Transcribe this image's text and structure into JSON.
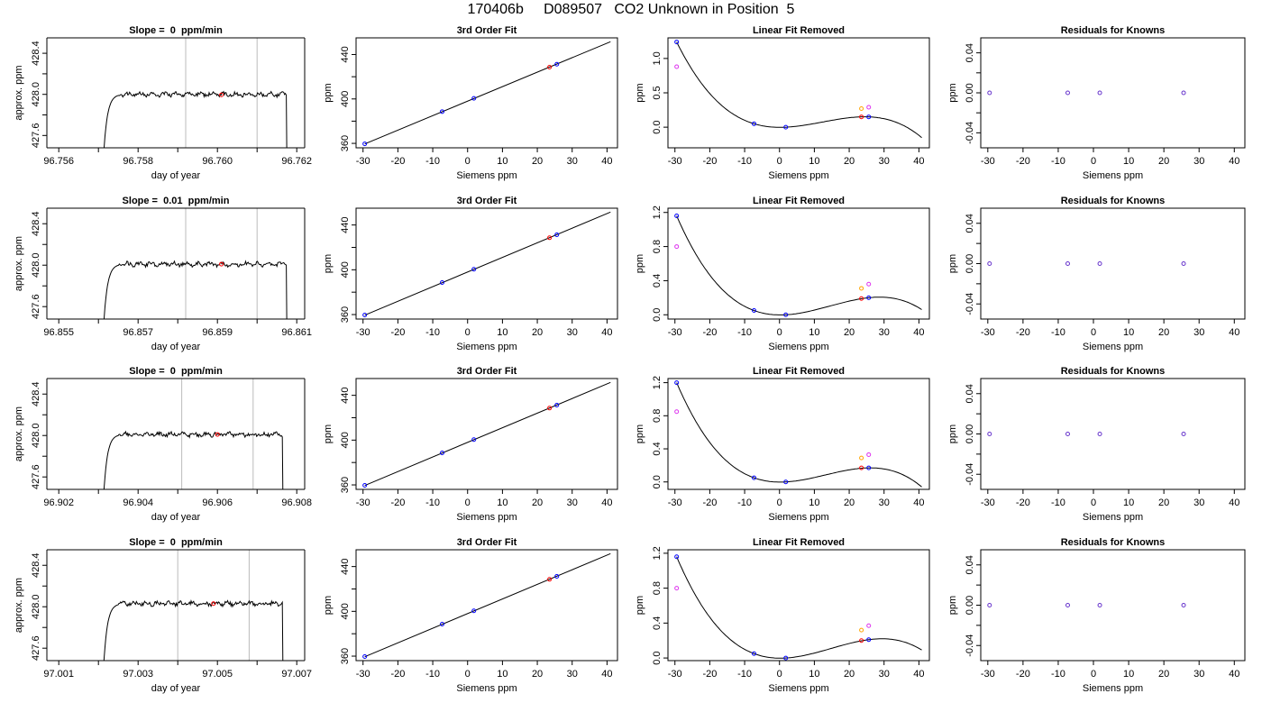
{
  "title": "170406b     D089507   CO2 Unknown in Position  5",
  "colors": {
    "axis": "#000000",
    "trace": "#000000",
    "vline": "#bbbbbb",
    "unknown_point": "#ff0000",
    "known_point": "#0000ff",
    "orange_point": "#ffa500",
    "magenta_point": "#dd33ee",
    "purple_point": "#6633cc"
  },
  "chart_data": [
    {
      "type": "line",
      "panel": "timeseries",
      "row": 0,
      "title": "Slope =  0  ppm/min",
      "xlabel": "day of year",
      "ylabel": "approx. ppm",
      "xlim": [
        96.7557,
        96.7622
      ],
      "ylim": [
        427.48,
        428.55
      ],
      "xticks": [
        96.756,
        96.758,
        96.76,
        96.762
      ],
      "xtick_labels": [
        "96.756",
        "96.758",
        "96.760",
        "96.762"
      ],
      "xticks_minor": [
        96.757,
        96.759,
        96.761
      ],
      "yticks": [
        427.6,
        428.0,
        428.4
      ],
      "ytick_labels": [
        "427.6",
        "428.0",
        "428.4"
      ],
      "yticks_minor": [
        427.8,
        428.2
      ],
      "vlines": [
        96.7592,
        96.761
      ],
      "trace_start": 96.7571,
      "trace_end": 96.7618,
      "plateau": 428.0,
      "marker": [
        96.7601,
        427.995
      ]
    },
    {
      "type": "scatter",
      "panel": "fit",
      "row": 0,
      "title": "3rd Order Fit",
      "xlabel": "Siemens ppm",
      "ylabel": "ppm",
      "xlim": [
        -32,
        43
      ],
      "ylim": [
        356,
        455
      ],
      "xticks": [
        -30,
        -20,
        -10,
        0,
        10,
        20,
        30,
        40
      ],
      "yticks": [
        360,
        400,
        440
      ],
      "yticks_minor": [
        380,
        420
      ],
      "line": [
        [
          -29.5,
          359.5
        ],
        [
          41,
          451.5
        ]
      ],
      "points": [
        [
          -29.5,
          359.6,
          "known"
        ],
        [
          -7.3,
          388.6,
          "known"
        ],
        [
          1.8,
          400.5,
          "known"
        ],
        [
          25.6,
          431.3,
          "known"
        ],
        [
          23.5,
          428.6,
          "unknown"
        ]
      ]
    },
    {
      "type": "scatter",
      "panel": "linear-removed",
      "row": 0,
      "title": "Linear Fit Removed",
      "xlabel": "Siemens ppm",
      "ylabel": "ppm",
      "xlim": [
        -32,
        43
      ],
      "ylim": [
        -0.3,
        1.3
      ],
      "xticks": [
        -30,
        -20,
        -10,
        0,
        10,
        20,
        30,
        40
      ],
      "yticks": [
        0.0,
        0.5,
        1.0
      ],
      "ytick_labels": [
        "0.0",
        "0.5",
        "1.0"
      ],
      "cubic_points": [
        [
          -29.5,
          1.24
        ],
        [
          -7.3,
          0.05
        ],
        [
          1.8,
          0.0
        ],
        [
          25.6,
          0.15
        ]
      ],
      "curve_range": [
        -29.5,
        40.8
      ],
      "points": [
        [
          -29.5,
          1.24,
          "known"
        ],
        [
          -7.3,
          0.05,
          "known"
        ],
        [
          1.8,
          0.0,
          "known"
        ],
        [
          25.6,
          0.15,
          "known"
        ],
        [
          23.5,
          0.15,
          "unknown"
        ],
        [
          -29.5,
          0.88,
          "magenta"
        ],
        [
          23.5,
          0.27,
          "orange"
        ],
        [
          25.6,
          0.29,
          "magenta"
        ]
      ]
    },
    {
      "type": "scatter",
      "panel": "residuals",
      "row": 0,
      "title": "Residuals for Knowns",
      "xlabel": "Siemens ppm",
      "ylabel": "ppm",
      "xlim": [
        -32,
        43
      ],
      "ylim": [
        -0.055,
        0.055
      ],
      "xticks": [
        -30,
        -20,
        -10,
        0,
        10,
        20,
        30,
        40
      ],
      "yticks": [
        -0.04,
        0.0,
        0.04
      ],
      "ytick_labels": [
        "-0.04",
        "0.00",
        "0.04"
      ],
      "yticks_minor": [
        -0.02,
        0.02
      ],
      "points": [
        [
          -29.5,
          0.0,
          "purple"
        ],
        [
          -7.3,
          0.0,
          "purple"
        ],
        [
          1.8,
          0.0,
          "purple"
        ],
        [
          25.6,
          0.0,
          "purple"
        ]
      ]
    },
    {
      "type": "line",
      "panel": "timeseries",
      "row": 1,
      "title": "Slope =  0.01  ppm/min",
      "xlabel": "day of year",
      "ylabel": "approx. ppm",
      "xlim": [
        96.8547,
        96.8612
      ],
      "ylim": [
        427.48,
        428.55
      ],
      "xticks": [
        96.855,
        96.857,
        96.859,
        96.861
      ],
      "xtick_labels": [
        "96.855",
        "96.857",
        "96.859",
        "96.861"
      ],
      "xticks_minor": [
        96.856,
        96.858,
        96.86
      ],
      "yticks": [
        427.6,
        428.0,
        428.4
      ],
      "ytick_labels": [
        "427.6",
        "428.0",
        "428.4"
      ],
      "yticks_minor": [
        427.8,
        428.2
      ],
      "vlines": [
        96.8582,
        96.86
      ],
      "trace_start": 96.8561,
      "trace_end": 96.8608,
      "plateau": 428.01,
      "marker": [
        96.8591,
        428.01
      ]
    },
    {
      "type": "scatter",
      "panel": "fit",
      "row": 1,
      "title": "3rd Order Fit",
      "xlabel": "Siemens ppm",
      "ylabel": "ppm",
      "xlim": [
        -32,
        43
      ],
      "ylim": [
        356,
        455
      ],
      "xticks": [
        -30,
        -20,
        -10,
        0,
        10,
        20,
        30,
        40
      ],
      "yticks": [
        360,
        400,
        440
      ],
      "yticks_minor": [
        380,
        420
      ],
      "line": [
        [
          -29.5,
          359.5
        ],
        [
          41,
          451.5
        ]
      ],
      "points": [
        [
          -29.5,
          359.6,
          "known"
        ],
        [
          -7.3,
          388.6,
          "known"
        ],
        [
          1.8,
          400.5,
          "known"
        ],
        [
          25.6,
          431.3,
          "known"
        ],
        [
          23.5,
          428.6,
          "unknown"
        ]
      ]
    },
    {
      "type": "scatter",
      "panel": "linear-removed",
      "row": 1,
      "title": "Linear Fit Removed",
      "xlabel": "Siemens ppm",
      "ylabel": "ppm",
      "xlim": [
        -32,
        43
      ],
      "ylim": [
        -0.05,
        1.25
      ],
      "xticks": [
        -30,
        -20,
        -10,
        0,
        10,
        20,
        30,
        40
      ],
      "yticks": [
        0.0,
        0.4,
        0.8,
        1.2
      ],
      "ytick_labels": [
        "0.0",
        "0.4",
        "0.8",
        "1.2"
      ],
      "cubic_points": [
        [
          -29.5,
          1.16
        ],
        [
          -7.3,
          0.05
        ],
        [
          1.8,
          0.0
        ],
        [
          25.6,
          0.2
        ]
      ],
      "curve_range": [
        -29.5,
        40.8
      ],
      "points": [
        [
          -29.5,
          1.16,
          "known"
        ],
        [
          -7.3,
          0.05,
          "known"
        ],
        [
          1.8,
          0.0,
          "known"
        ],
        [
          25.6,
          0.2,
          "known"
        ],
        [
          23.5,
          0.19,
          "unknown"
        ],
        [
          -29.5,
          0.8,
          "magenta"
        ],
        [
          23.5,
          0.31,
          "orange"
        ],
        [
          25.6,
          0.36,
          "magenta"
        ]
      ]
    },
    {
      "type": "scatter",
      "panel": "residuals",
      "row": 1,
      "title": "Residuals for Knowns",
      "xlabel": "Siemens ppm",
      "ylabel": "ppm",
      "xlim": [
        -32,
        43
      ],
      "ylim": [
        -0.055,
        0.055
      ],
      "xticks": [
        -30,
        -20,
        -10,
        0,
        10,
        20,
        30,
        40
      ],
      "yticks": [
        -0.04,
        0.0,
        0.04
      ],
      "ytick_labels": [
        "-0.04",
        "0.00",
        "0.04"
      ],
      "yticks_minor": [
        -0.02,
        0.02
      ],
      "points": [
        [
          -29.5,
          0.0,
          "purple"
        ],
        [
          -7.3,
          0.0,
          "purple"
        ],
        [
          1.8,
          0.0,
          "purple"
        ],
        [
          25.6,
          0.0,
          "purple"
        ]
      ]
    },
    {
      "type": "line",
      "panel": "timeseries",
      "row": 2,
      "title": "Slope =  0  ppm/min",
      "xlabel": "day of year",
      "ylabel": "approx. ppm",
      "xlim": [
        96.9017,
        96.9082
      ],
      "ylim": [
        427.48,
        428.55
      ],
      "xticks": [
        96.902,
        96.904,
        96.906,
        96.908
      ],
      "xtick_labels": [
        "96.902",
        "96.904",
        "96.906",
        "96.908"
      ],
      "xticks_minor": [
        96.903,
        96.905,
        96.907
      ],
      "yticks": [
        427.6,
        428.0,
        428.4
      ],
      "ytick_labels": [
        "427.6",
        "428.0",
        "428.4"
      ],
      "yticks_minor": [
        427.8,
        428.2
      ],
      "vlines": [
        96.9051,
        96.9069
      ],
      "trace_start": 96.9031,
      "trace_end": 96.9077,
      "plateau": 428.01,
      "marker": [
        96.906,
        428.01
      ]
    },
    {
      "type": "scatter",
      "panel": "fit",
      "row": 2,
      "title": "3rd Order Fit",
      "xlabel": "Siemens ppm",
      "ylabel": "ppm",
      "xlim": [
        -32,
        43
      ],
      "ylim": [
        356,
        455
      ],
      "xticks": [
        -30,
        -20,
        -10,
        0,
        10,
        20,
        30,
        40
      ],
      "yticks": [
        360,
        400,
        440
      ],
      "yticks_minor": [
        380,
        420
      ],
      "line": [
        [
          -29.5,
          359.5
        ],
        [
          41,
          451.5
        ]
      ],
      "points": [
        [
          -29.5,
          359.6,
          "known"
        ],
        [
          -7.3,
          388.6,
          "known"
        ],
        [
          1.8,
          400.5,
          "known"
        ],
        [
          25.6,
          431.3,
          "known"
        ],
        [
          23.5,
          428.6,
          "unknown"
        ]
      ]
    },
    {
      "type": "scatter",
      "panel": "linear-removed",
      "row": 2,
      "title": "Linear Fit Removed",
      "xlabel": "Siemens ppm",
      "ylabel": "ppm",
      "xlim": [
        -32,
        43
      ],
      "ylim": [
        -0.09,
        1.25
      ],
      "xticks": [
        -30,
        -20,
        -10,
        0,
        10,
        20,
        30,
        40
      ],
      "yticks": [
        0.0,
        0.4,
        0.8,
        1.2
      ],
      "ytick_labels": [
        "0.0",
        "0.4",
        "0.8",
        "1.2"
      ],
      "cubic_points": [
        [
          -29.5,
          1.2
        ],
        [
          -7.3,
          0.05
        ],
        [
          1.8,
          0.0
        ],
        [
          25.6,
          0.17
        ]
      ],
      "curve_range": [
        -29.5,
        40.8
      ],
      "points": [
        [
          -29.5,
          1.2,
          "known"
        ],
        [
          -7.3,
          0.05,
          "known"
        ],
        [
          1.8,
          0.0,
          "known"
        ],
        [
          25.6,
          0.17,
          "known"
        ],
        [
          23.5,
          0.17,
          "unknown"
        ],
        [
          -29.5,
          0.85,
          "magenta"
        ],
        [
          23.5,
          0.29,
          "orange"
        ],
        [
          25.6,
          0.33,
          "magenta"
        ]
      ]
    },
    {
      "type": "scatter",
      "panel": "residuals",
      "row": 2,
      "title": "Residuals for Knowns",
      "xlabel": "Siemens ppm",
      "ylabel": "ppm",
      "xlim": [
        -32,
        43
      ],
      "ylim": [
        -0.055,
        0.055
      ],
      "xticks": [
        -30,
        -20,
        -10,
        0,
        10,
        20,
        30,
        40
      ],
      "yticks": [
        -0.04,
        0.0,
        0.04
      ],
      "ytick_labels": [
        "-0.04",
        "0.00",
        "0.04"
      ],
      "yticks_minor": [
        -0.02,
        0.02
      ],
      "points": [
        [
          -29.5,
          0.0,
          "purple"
        ],
        [
          -7.3,
          0.0,
          "purple"
        ],
        [
          1.8,
          0.0,
          "purple"
        ],
        [
          25.6,
          0.0,
          "purple"
        ]
      ]
    },
    {
      "type": "line",
      "panel": "timeseries",
      "row": 3,
      "title": "Slope =  0  ppm/min",
      "xlabel": "day of year",
      "ylabel": "approx. ppm",
      "xlim": [
        97.0007,
        97.0072
      ],
      "ylim": [
        427.48,
        428.55
      ],
      "xticks": [
        97.001,
        97.003,
        97.005,
        97.007
      ],
      "xtick_labels": [
        "97.001",
        "97.003",
        "97.005",
        "97.007"
      ],
      "xticks_minor": [
        97.002,
        97.004,
        97.006
      ],
      "yticks": [
        427.6,
        428.0,
        428.4
      ],
      "ytick_labels": [
        "427.6",
        "428.0",
        "428.4"
      ],
      "yticks_minor": [
        427.8,
        428.2
      ],
      "vlines": [
        97.004,
        97.0058
      ],
      "trace_start": 97.0021,
      "trace_end": 97.0067,
      "plateau": 428.03,
      "marker": [
        97.0049,
        428.03
      ]
    },
    {
      "type": "scatter",
      "panel": "fit",
      "row": 3,
      "title": "3rd Order Fit",
      "xlabel": "Siemens ppm",
      "ylabel": "ppm",
      "xlim": [
        -32,
        43
      ],
      "ylim": [
        356,
        455
      ],
      "xticks": [
        -30,
        -20,
        -10,
        0,
        10,
        20,
        30,
        40
      ],
      "yticks": [
        360,
        400,
        440
      ],
      "yticks_minor": [
        380,
        420
      ],
      "line": [
        [
          -29.5,
          359.5
        ],
        [
          41,
          451.5
        ]
      ],
      "points": [
        [
          -29.5,
          359.6,
          "known"
        ],
        [
          -7.3,
          388.6,
          "known"
        ],
        [
          1.8,
          400.5,
          "known"
        ],
        [
          25.6,
          431.3,
          "known"
        ],
        [
          23.5,
          428.6,
          "unknown"
        ]
      ]
    },
    {
      "type": "scatter",
      "panel": "linear-removed",
      "row": 3,
      "title": "Linear Fit Removed",
      "xlabel": "Siemens ppm",
      "ylabel": "ppm",
      "xlim": [
        -32,
        43
      ],
      "ylim": [
        -0.03,
        1.24
      ],
      "xticks": [
        -30,
        -20,
        -10,
        0,
        10,
        20,
        30,
        40
      ],
      "yticks": [
        0.0,
        0.4,
        0.8,
        1.2
      ],
      "ytick_labels": [
        "0.0",
        "0.4",
        "0.8",
        "1.2"
      ],
      "cubic_points": [
        [
          -29.5,
          1.16
        ],
        [
          -7.3,
          0.05
        ],
        [
          1.8,
          0.0
        ],
        [
          25.6,
          0.21
        ]
      ],
      "curve_range": [
        -29.5,
        40.8
      ],
      "points": [
        [
          -29.5,
          1.16,
          "known"
        ],
        [
          -7.3,
          0.05,
          "known"
        ],
        [
          1.8,
          0.0,
          "known"
        ],
        [
          25.6,
          0.21,
          "known"
        ],
        [
          23.5,
          0.2,
          "unknown"
        ],
        [
          -29.5,
          0.8,
          "magenta"
        ],
        [
          23.5,
          0.32,
          "orange"
        ],
        [
          25.6,
          0.37,
          "magenta"
        ]
      ]
    },
    {
      "type": "scatter",
      "panel": "residuals",
      "row": 3,
      "title": "Residuals for Knowns",
      "xlabel": "Siemens ppm",
      "ylabel": "ppm",
      "xlim": [
        -32,
        43
      ],
      "ylim": [
        -0.055,
        0.055
      ],
      "xticks": [
        -30,
        -20,
        -10,
        0,
        10,
        20,
        30,
        40
      ],
      "yticks": [
        -0.04,
        0.0,
        0.04
      ],
      "ytick_labels": [
        "-0.04",
        "0.00",
        "0.04"
      ],
      "yticks_minor": [
        -0.02,
        0.02
      ],
      "points": [
        [
          -29.5,
          0.0,
          "purple"
        ],
        [
          -7.3,
          0.0,
          "purple"
        ],
        [
          1.8,
          0.0,
          "purple"
        ],
        [
          25.6,
          0.0,
          "purple"
        ]
      ]
    }
  ]
}
